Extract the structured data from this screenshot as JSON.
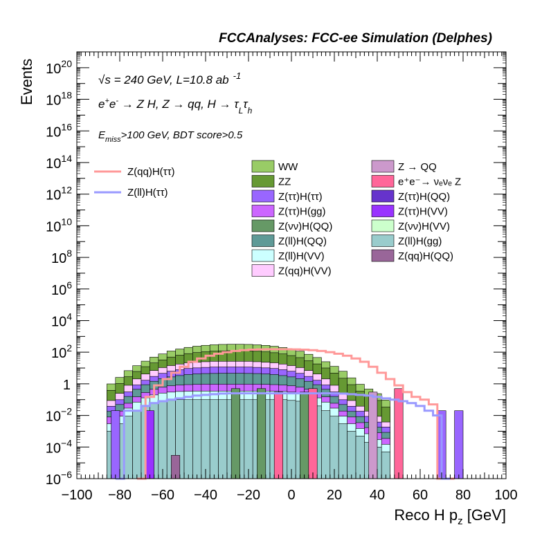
{
  "chart_data": {
    "type": "histogram",
    "title": "FCCAnalyses: FCC-ee Simulation (Delphes)",
    "xlabel": "Reco H p",
    "xlabel_sub": "z",
    "xlabel_unit": "[GeV]",
    "ylabel": "Events",
    "xlim": [
      -100,
      100
    ],
    "ylim": [
      1e-06,
      1e+21
    ],
    "yscale": "log",
    "x_ticks": [
      "−100",
      "−80",
      "−60",
      "−40",
      "−20",
      "0",
      "20",
      "40",
      "60",
      "80",
      "100"
    ],
    "y_ticks": [
      {
        "base": "10",
        "exp": "20"
      },
      {
        "base": "10",
        "exp": "18"
      },
      {
        "base": "10",
        "exp": "16"
      },
      {
        "base": "10",
        "exp": "14"
      },
      {
        "base": "10",
        "exp": "12"
      },
      {
        "base": "10",
        "exp": "10"
      },
      {
        "base": "10",
        "exp": "8"
      },
      {
        "base": "10",
        "exp": "6"
      },
      {
        "base": "10",
        "exp": "4"
      },
      {
        "base": "10",
        "exp": "2"
      },
      {
        "base": "1",
        "exp": ""
      },
      {
        "base": "10",
        "exp": "−2"
      },
      {
        "base": "10",
        "exp": "−4"
      },
      {
        "base": "10",
        "exp": "−6"
      }
    ],
    "annotations": {
      "energy_sqrt": "√s",
      "energy": " = 240 GeV, L=10.8 ab",
      "energy_sup": "-1",
      "process_a": "e",
      "process_b": "e",
      "process_c": " → Z H, Z  → qq, H  → τ",
      "process_sub1": "L",
      "process_tau2": "τ",
      "process_sub2": "h",
      "cuts_e": "E",
      "cuts_sub": "miss",
      "cuts_rest": ">100 GeV, BDT score>0.5"
    },
    "bin_width": 4,
    "bin_x_start": -86,
    "stack_layers": [
      {
        "name": "WW",
        "color": "#99cc66",
        "values": [
          0.6,
          1.5,
          4,
          8,
          15,
          28,
          45,
          70,
          95,
          120,
          145,
          165,
          180,
          190,
          195,
          195,
          190,
          180,
          165,
          145,
          120,
          95,
          70,
          45,
          28,
          15,
          8,
          4,
          1.5,
          0.6,
          0.3,
          0.15,
          0.06
        ]
      },
      {
        "name": "ZZ",
        "color": "#669933",
        "values": [
          0.3,
          0.8,
          2,
          4,
          8,
          14,
          22,
          35,
          47,
          60,
          72,
          82,
          90,
          95,
          98,
          97,
          95,
          90,
          82,
          72,
          60,
          47,
          35,
          22,
          14,
          8,
          4,
          2,
          0.8,
          0.3,
          0.15,
          0.08,
          0.03
        ]
      },
      {
        "name": "Z(qq)H(VV)",
        "color": "#ffccff",
        "values": [
          0.05,
          0.15,
          0.5,
          1.2,
          2.5,
          4,
          6,
          8,
          10,
          12,
          13,
          14,
          15,
          15,
          15,
          15,
          15,
          14,
          13,
          12,
          10,
          8,
          6,
          4,
          2.5,
          1.2,
          0.5,
          0.15,
          0.05,
          0.02,
          0.01,
          0.005,
          0.002
        ]
      },
      {
        "name": "Z(ττ)H(ττ)",
        "color": "#9966ff",
        "values": [
          0.02,
          0.05,
          0.15,
          0.4,
          0.8,
          1.5,
          2.5,
          3.5,
          4.5,
          5.5,
          6,
          6.5,
          7,
          7,
          7,
          7,
          7,
          6.5,
          6,
          5.5,
          4.5,
          3.5,
          2.5,
          1.5,
          0.8,
          0.4,
          0.15,
          0.05,
          0.02,
          0.01,
          0.005,
          0.002,
          0.001
        ]
      },
      {
        "name": "Z(ll)H(QQ)",
        "color": "#5f9a97",
        "values": [
          0.01,
          0.03,
          0.1,
          0.3,
          0.6,
          1,
          1.5,
          2,
          2.5,
          3,
          3.3,
          3.5,
          3.6,
          3.7,
          3.7,
          3.7,
          3.6,
          3.5,
          3.3,
          3,
          2.5,
          2,
          1.5,
          1,
          0.6,
          0.3,
          0.1,
          0.03,
          0.01,
          0.005,
          0.002,
          0.001,
          0.0005
        ]
      },
      {
        "name": "Z(ττ)H(gg)",
        "color": "#cc66ff",
        "values": [
          0.005,
          0.01,
          0.03,
          0.08,
          0.15,
          0.25,
          0.35,
          0.45,
          0.5,
          0.55,
          0.58,
          0.6,
          0.6,
          0.6,
          0.6,
          0.6,
          0.6,
          0.6,
          0.58,
          0.55,
          0.5,
          0.45,
          0.35,
          0.25,
          0.15,
          0.08,
          0.03,
          0.01,
          0.005,
          0.002,
          0.001,
          0.0005,
          0.0002
        ]
      },
      {
        "name": "Z(ll)H(VV)",
        "color": "#ccffff",
        "values": [
          0.002,
          0.006,
          0.02,
          0.05,
          0.09,
          0.14,
          0.18,
          0.21,
          0.23,
          0.24,
          0.25,
          0.25,
          0.25,
          0.25,
          0.25,
          0.25,
          0.25,
          0.25,
          0.25,
          0.24,
          0.23,
          0.21,
          0.18,
          0.14,
          0.09,
          0.05,
          0.02,
          0.006,
          0.002,
          0.001,
          0.0005,
          0.0002,
          0.0001
        ]
      },
      {
        "name": "Z(ll)H(gg)",
        "color": "#99cccc",
        "values": [
          0.001,
          0.003,
          0.009,
          0.02,
          0.04,
          0.06,
          0.08,
          0.09,
          0.1,
          0.1,
          0.1,
          0.1,
          0.1,
          0.1,
          0.1,
          0.1,
          0.1,
          0.1,
          0.1,
          0.1,
          0.1,
          0.09,
          0.08,
          0.06,
          0.04,
          0.02,
          0.009,
          0.003,
          0.001,
          0.0005,
          0.0002,
          0.0001,
          5e-05
        ]
      }
    ],
    "spikes": [
      {
        "x": -84,
        "w": 4,
        "v": 0.02,
        "color": "#9966ff"
      },
      {
        "x": -68,
        "w": 4,
        "v": 0.02,
        "color": "#9933ff"
      },
      {
        "x": -56,
        "w": 4,
        "v": 3e-05,
        "color": "#996699"
      },
      {
        "x": -28,
        "w": 4,
        "v": 0.5,
        "color": "#669966"
      },
      {
        "x": -16,
        "w": 4,
        "v": 0.5,
        "color": "#669966"
      },
      {
        "x": -8,
        "w": 4,
        "v": 0.3,
        "color": "#ff6699"
      },
      {
        "x": 4,
        "w": 4,
        "v": 0.3,
        "color": "#669966"
      },
      {
        "x": 8,
        "w": 4,
        "v": 0.5,
        "color": "#ff6699"
      },
      {
        "x": 36,
        "w": 4,
        "v": 0.3,
        "color": "#cc99cc"
      },
      {
        "x": 48,
        "w": 4,
        "v": 0.5,
        "color": "#ff6699"
      },
      {
        "x": 68,
        "w": 4,
        "v": 0.02,
        "color": "#9966ff"
      },
      {
        "x": 76,
        "w": 4,
        "v": 0.02,
        "color": "#9966ff"
      }
    ],
    "signal_lines": [
      {
        "name": "Z(qq)H(ττ)",
        "color": "#ff9999",
        "x": [
          -72,
          -68,
          -64,
          -60,
          -56,
          -52,
          -48,
          -44,
          -40,
          -36,
          -32,
          -28,
          -24,
          -20,
          -16,
          -12,
          -8,
          -4,
          0,
          4,
          8,
          12,
          16,
          20,
          24,
          28,
          32,
          36,
          40,
          44,
          48,
          52,
          56,
          60,
          64,
          68,
          72
        ],
        "values": [
          1e-06,
          0.15,
          0.8,
          2,
          5,
          12,
          25,
          40,
          60,
          80,
          100,
          120,
          135,
          145,
          150,
          155,
          155,
          155,
          150,
          145,
          135,
          120,
          100,
          80,
          60,
          40,
          25,
          12,
          5,
          2,
          0.8,
          0.3,
          0.15,
          0.1,
          0.05,
          1e-06,
          1e-06
        ]
      },
      {
        "name": "Z(ll)H(ττ)",
        "color": "#9999ff",
        "x": [
          -82,
          -78,
          -74,
          -70,
          -66,
          -62,
          -58,
          -54,
          -50,
          -46,
          -42,
          -38,
          -34,
          -30,
          -26,
          -22,
          -18,
          -14,
          -10,
          -6,
          -2,
          2,
          6,
          10,
          14,
          18,
          22,
          26,
          30,
          34,
          38,
          42,
          46,
          50,
          54,
          58,
          62,
          66,
          70
        ],
        "values": [
          1e-06,
          0.02,
          0.02,
          0.04,
          0.06,
          0.08,
          0.1,
          0.12,
          0.15,
          0.18,
          0.2,
          0.22,
          0.24,
          0.25,
          0.25,
          0.25,
          0.25,
          0.25,
          0.25,
          0.25,
          0.25,
          0.25,
          0.25,
          0.25,
          0.25,
          0.25,
          0.24,
          0.22,
          0.2,
          0.18,
          0.15,
          0.12,
          0.1,
          0.08,
          0.06,
          0.04,
          0.02,
          0.01,
          1e-06
        ]
      }
    ],
    "legend_signal": [
      {
        "name": "Z(qq)H(ττ)",
        "color": "#ff9999"
      },
      {
        "name": "Z(ll)H(ττ)",
        "color": "#9999ff"
      }
    ],
    "legend_bkg": [
      {
        "name": "WW",
        "color": "#99cc66"
      },
      {
        "name": "Z → QQ",
        "color": "#cc99cc"
      },
      {
        "name": "ZZ",
        "color": "#669933"
      },
      {
        "name": "e⁺e⁻→ νₑνₑ Z",
        "color": "#ff6699"
      },
      {
        "name": "Z(ττ)H(ττ)",
        "color": "#9966ff"
      },
      {
        "name": "Z(ττ)H(QQ)",
        "color": "#6633cc"
      },
      {
        "name": "Z(ττ)H(gg)",
        "color": "#cc66ff"
      },
      {
        "name": "Z(ττ)H(VV)",
        "color": "#9933ff"
      },
      {
        "name": "Z(νν)H(QQ)",
        "color": "#669966"
      },
      {
        "name": "Z(νν)H(VV)",
        "color": "#ccffcc"
      },
      {
        "name": "Z(ll)H(QQ)",
        "color": "#5f9a97"
      },
      {
        "name": "Z(ll)H(gg)",
        "color": "#99cccc"
      },
      {
        "name": "Z(ll)H(VV)",
        "color": "#ccffff"
      },
      {
        "name": "Z(qq)H(QQ)",
        "color": "#996699"
      },
      {
        "name": "Z(qq)H(VV)",
        "color": "#ffccff"
      }
    ]
  }
}
